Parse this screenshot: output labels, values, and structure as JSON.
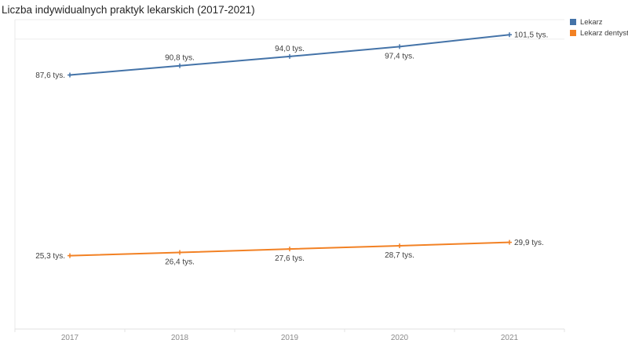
{
  "title": "Liczba indywidualnych praktyk lekarskich (2017-2021)",
  "chart_data": {
    "type": "line",
    "title": "Liczba indywidualnych praktyk lekarskich (2017-2021)",
    "categories": [
      "2017",
      "2018",
      "2019",
      "2020",
      "2021"
    ],
    "series": [
      {
        "name": "Lekarz",
        "color": "#4473a8",
        "values": [
          87.6,
          90.8,
          94.0,
          97.4,
          101.5
        ],
        "labels": [
          "87,6 tys.",
          "90,8 tys.",
          "94,0 tys.",
          "97,4 tys.",
          "101,5 tys."
        ],
        "label_positions": [
          "left",
          "above",
          "above",
          "below",
          "right"
        ]
      },
      {
        "name": "Lekarz dentysta",
        "color": "#f28124",
        "values": [
          25.3,
          26.4,
          27.6,
          28.7,
          29.9
        ],
        "labels": [
          "25,3 tys.",
          "26,4 tys.",
          "27,6 tys.",
          "28,7 tys.",
          "29,9 tys."
        ],
        "label_positions": [
          "left",
          "below",
          "below",
          "below",
          "right"
        ]
      }
    ],
    "xlabel": "",
    "ylabel": "",
    "unit": "tys.",
    "ylim": [
      0,
      106.7
    ],
    "gridlines_y": [
      100
    ],
    "grid": "horizontal-minimal",
    "legend_position": "top-right"
  }
}
